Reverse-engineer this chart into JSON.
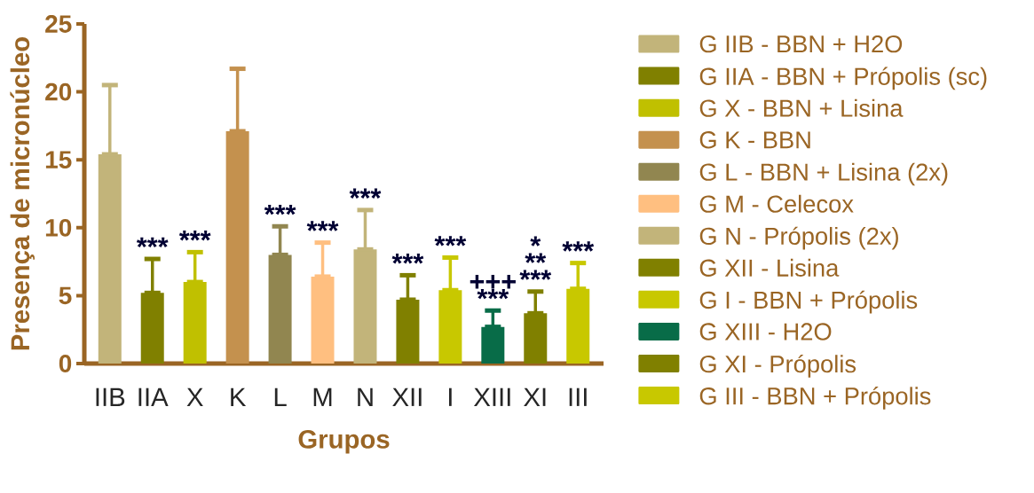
{
  "chart_data": {
    "type": "bar",
    "xlabel": "Grupos",
    "ylabel": "Presença de micronúcleo",
    "categories": [
      "IIB",
      "IIA",
      "X",
      "K",
      "L",
      "M",
      "N",
      "XII",
      "I",
      "XIII",
      "XI",
      "III"
    ],
    "series": [
      {
        "name": "G IIB - BBN + H2O",
        "color": "#c2b47a",
        "values": [
          15.4,
          null,
          null,
          null,
          null,
          null,
          null,
          null,
          null,
          null,
          null,
          null
        ],
        "errors": [
          [
            15.4,
            20.5
          ],
          null,
          null,
          null,
          null,
          null,
          null,
          null,
          null,
          null,
          null,
          null
        ]
      },
      {
        "name": "G IIA - BBN + Própolis (sc)",
        "color": "#808000",
        "values": [
          null,
          5.2,
          null,
          null,
          null,
          null,
          null,
          null,
          null,
          null,
          null,
          null
        ],
        "errors": [
          null,
          [
            5.2,
            7.7
          ],
          null,
          null,
          null,
          null,
          null,
          null,
          null,
          null,
          null,
          null
        ]
      },
      {
        "name": "G X - BBN + Lisina",
        "color": "#c0c000",
        "values": [
          null,
          null,
          6.0,
          null,
          null,
          null,
          null,
          null,
          null,
          null,
          null,
          null
        ],
        "errors": [
          null,
          null,
          [
            6.0,
            8.2
          ],
          null,
          null,
          null,
          null,
          null,
          null,
          null,
          null,
          null
        ]
      },
      {
        "name": "G K - BBN",
        "color": "#c4914e",
        "values": [
          null,
          null,
          null,
          17.1,
          null,
          null,
          null,
          null,
          null,
          null,
          null,
          null
        ],
        "errors": [
          null,
          null,
          null,
          [
            17.1,
            21.7
          ],
          null,
          null,
          null,
          null,
          null,
          null,
          null,
          null
        ]
      },
      {
        "name": "G L - BBN + Lisina (2x)",
        "color": "#918650",
        "values": [
          null,
          null,
          null,
          null,
          8.0,
          null,
          null,
          null,
          null,
          null,
          null,
          null
        ],
        "errors": [
          null,
          null,
          null,
          null,
          [
            8.0,
            10.1
          ],
          null,
          null,
          null,
          null,
          null,
          null,
          null
        ]
      },
      {
        "name": "G M - Celecox",
        "color": "#ffbf80",
        "values": [
          null,
          null,
          null,
          null,
          null,
          6.4,
          null,
          null,
          null,
          null,
          null,
          null
        ],
        "errors": [
          null,
          null,
          null,
          null,
          null,
          [
            6.4,
            8.9
          ],
          null,
          null,
          null,
          null,
          null,
          null
        ]
      },
      {
        "name": "G N - Própolis (2x)",
        "color": "#c2b47a",
        "values": [
          null,
          null,
          null,
          null,
          null,
          null,
          8.4,
          null,
          null,
          null,
          null,
          null
        ],
        "errors": [
          null,
          null,
          null,
          null,
          null,
          null,
          [
            8.4,
            11.3
          ],
          null,
          null,
          null,
          null,
          null
        ]
      },
      {
        "name": "G XII - Lisina",
        "color": "#808000",
        "values": [
          null,
          null,
          null,
          null,
          null,
          null,
          null,
          4.7,
          null,
          null,
          null,
          null
        ],
        "errors": [
          null,
          null,
          null,
          null,
          null,
          null,
          null,
          [
            4.7,
            6.5
          ],
          null,
          null,
          null,
          null
        ]
      },
      {
        "name": "G I - BBN + Própolis",
        "color": "#c8c800",
        "values": [
          null,
          null,
          null,
          null,
          null,
          null,
          null,
          null,
          5.4,
          null,
          null,
          null
        ],
        "errors": [
          null,
          null,
          null,
          null,
          null,
          null,
          null,
          null,
          [
            5.4,
            7.8
          ],
          null,
          null,
          null
        ]
      },
      {
        "name": "G XIII - H2O",
        "color": "#086c48",
        "values": [
          null,
          null,
          null,
          null,
          null,
          null,
          null,
          null,
          null,
          2.7,
          null,
          null
        ],
        "errors": [
          null,
          null,
          null,
          null,
          null,
          null,
          null,
          null,
          null,
          [
            2.7,
            3.9
          ],
          null,
          null
        ]
      },
      {
        "name": "G XI - Própolis",
        "color": "#808000",
        "values": [
          null,
          null,
          null,
          null,
          null,
          null,
          null,
          null,
          null,
          null,
          3.7,
          null
        ],
        "errors": [
          null,
          null,
          null,
          null,
          null,
          null,
          null,
          null,
          null,
          null,
          [
            3.7,
            5.3
          ],
          null
        ]
      },
      {
        "name": "G III  - BBN + Própolis",
        "color": "#c8c800",
        "values": [
          null,
          null,
          null,
          null,
          null,
          null,
          null,
          null,
          null,
          null,
          null,
          5.5
        ],
        "errors": [
          null,
          null,
          null,
          null,
          null,
          null,
          null,
          null,
          null,
          null,
          null,
          [
            5.5,
            7.4
          ]
        ]
      }
    ],
    "annotations": [
      {
        "text": "***",
        "x": "IIA",
        "y": 7.7
      },
      {
        "text": "***",
        "x": "X",
        "y": 8.2
      },
      {
        "text": "***",
        "x": "L",
        "y": 10.1
      },
      {
        "text": "***",
        "x": "M",
        "y": 8.9
      },
      {
        "text": "***",
        "x": "N",
        "y": 11.3
      },
      {
        "text": "***",
        "x": "XII",
        "y": 6.5
      },
      {
        "text": "***",
        "x": "I",
        "y": 7.8
      },
      {
        "text": "***",
        "x": "XIII",
        "y": 3.9
      },
      {
        "text": "+++",
        "x": "XIII",
        "y": 3.9
      },
      {
        "text": "***",
        "x": "XI",
        "y": 5.3
      },
      {
        "text": "**",
        "x": "XI",
        "y": 5.3
      },
      {
        "text": "*",
        "x": "XI",
        "y": 5.3
      },
      {
        "text": "***",
        "x": "III",
        "y": 7.4
      }
    ],
    "ylim": [
      0,
      25
    ],
    "yticks": [
      0,
      5,
      10,
      15,
      20,
      25
    ],
    "grid": false,
    "legend": "right"
  }
}
